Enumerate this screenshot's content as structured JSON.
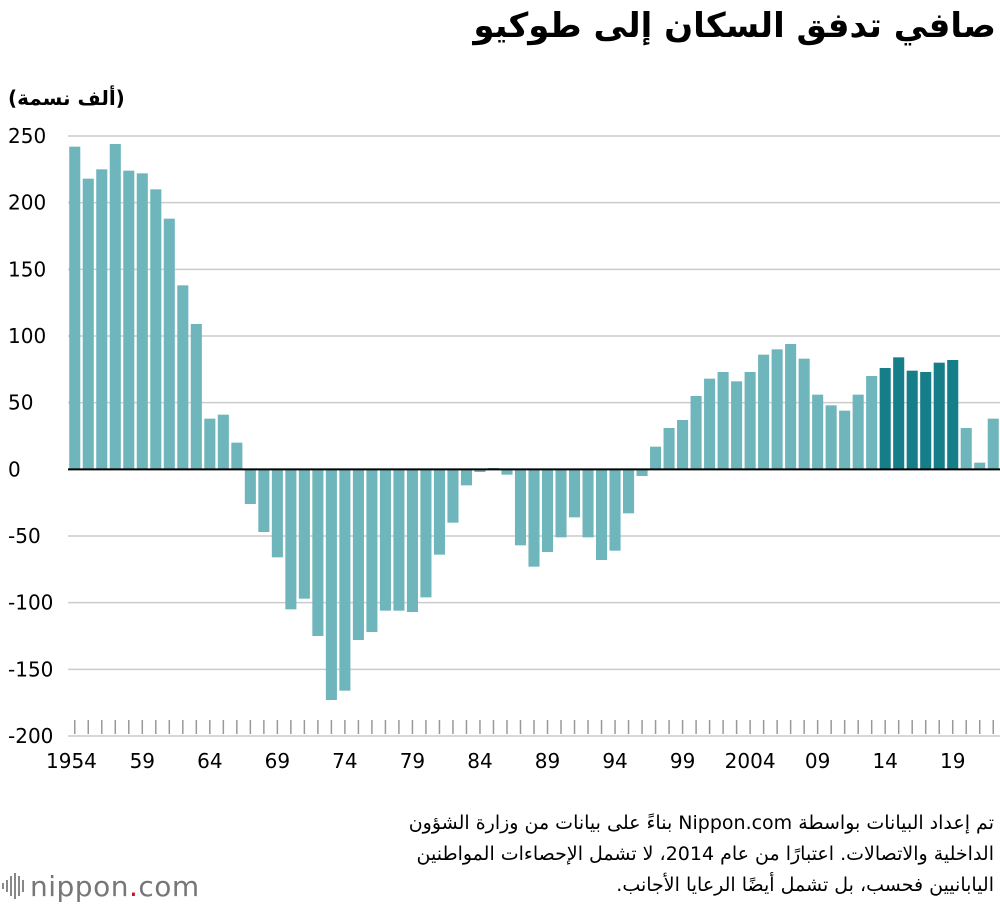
{
  "title": "صافي تدفق السكان إلى طوكيو",
  "unit_label": "(ألف نسمة)",
  "note_lines": [
    "تم إعداد البيانات بواسطة Nippon.com بناءً على بيانات من وزارة الشؤون",
    "الداخلية والاتصالات. اعتبارًا من عام 2014، لا تشمل الإحصاءات المواطنين",
    "اليابانيين فحسب، بل تشمل أيضًا الرعايا الأجانب."
  ],
  "logo": {
    "name": "nippon",
    "dot": ".",
    "tld": "com"
  },
  "colors": {
    "bar": "#6fb6bc",
    "bar_highlight": "#157e89",
    "grid": "#cccccc",
    "zero_line": "#000000",
    "tick": "#999999"
  },
  "chart_data": {
    "type": "bar",
    "title": "صافي تدفق السكان إلى طوكيو",
    "ylabel": "(ألف نسمة)",
    "xlabel": "",
    "ylim": [
      -200,
      250
    ],
    "yticks": [
      250,
      200,
      150,
      100,
      50,
      0,
      -50,
      -100,
      -150,
      -200
    ],
    "xtick_labels": [
      {
        "year": 1954,
        "label": "1954"
      },
      {
        "year": 1959,
        "label": "59"
      },
      {
        "year": 1964,
        "label": "64"
      },
      {
        "year": 1969,
        "label": "69"
      },
      {
        "year": 1974,
        "label": "74"
      },
      {
        "year": 1979,
        "label": "79"
      },
      {
        "year": 1984,
        "label": "84"
      },
      {
        "year": 1989,
        "label": "89"
      },
      {
        "year": 1994,
        "label": "94"
      },
      {
        "year": 1999,
        "label": "99"
      },
      {
        "year": 2004,
        "label": "2004"
      },
      {
        "year": 2009,
        "label": "09"
      },
      {
        "year": 2014,
        "label": "14"
      },
      {
        "year": 2019,
        "label": "19"
      }
    ],
    "grid": true,
    "legend": "none",
    "highlight_from_year": 2014,
    "highlight_to_year": 2019,
    "years": [
      1954,
      1955,
      1956,
      1957,
      1958,
      1959,
      1960,
      1961,
      1962,
      1963,
      1964,
      1965,
      1966,
      1967,
      1968,
      1969,
      1970,
      1971,
      1972,
      1973,
      1974,
      1975,
      1976,
      1977,
      1978,
      1979,
      1980,
      1981,
      1982,
      1983,
      1984,
      1985,
      1986,
      1987,
      1988,
      1989,
      1990,
      1991,
      1992,
      1993,
      1994,
      1995,
      1996,
      1997,
      1998,
      1999,
      2000,
      2001,
      2002,
      2003,
      2004,
      2005,
      2006,
      2007,
      2008,
      2009,
      2010,
      2011,
      2012,
      2013,
      2014,
      2015,
      2016,
      2017,
      2018,
      2019,
      2020,
      2021,
      2022
    ],
    "values": [
      242,
      218,
      225,
      244,
      224,
      222,
      210,
      188,
      138,
      109,
      38,
      41,
      20,
      -26,
      -47,
      -66,
      -105,
      -97,
      -125,
      -173,
      -166,
      -128,
      -122,
      -106,
      -106,
      -107,
      -96,
      -64,
      -40,
      -12,
      -2,
      1,
      -4,
      -57,
      -73,
      -62,
      -51,
      -36,
      -51,
      -68,
      -61,
      -33,
      -5,
      17,
      31,
      37,
      55,
      68,
      73,
      66,
      73,
      86,
      90,
      94,
      83,
      56,
      48,
      44,
      56,
      70,
      76,
      84,
      74,
      73,
      80,
      82,
      31,
      5,
      38
    ]
  }
}
